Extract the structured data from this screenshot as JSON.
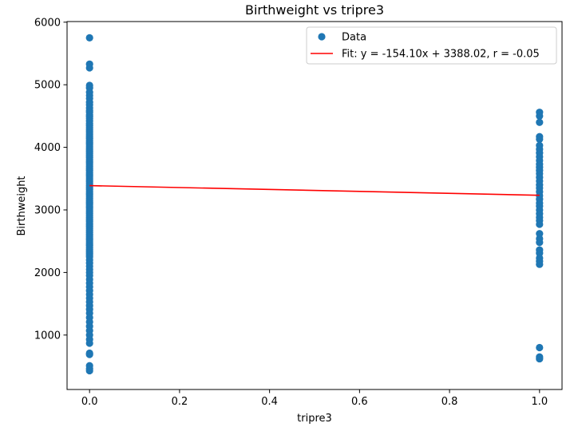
{
  "chart_data": {
    "type": "scatter",
    "title": "Birthweight vs tripre3",
    "xlabel": "tripre3",
    "ylabel": "Birthweight",
    "xlim": [
      -0.05,
      1.05
    ],
    "ylim": [
      130,
      6010
    ],
    "xticks": [
      0.0,
      0.2,
      0.4,
      0.6,
      0.8,
      1.0
    ],
    "xtick_labels": [
      "0.0",
      "0.2",
      "0.4",
      "0.6",
      "0.8",
      "1.0"
    ],
    "yticks": [
      1000,
      2000,
      3000,
      4000,
      5000,
      6000
    ],
    "ytick_labels": [
      "1000",
      "2000",
      "3000",
      "4000",
      "5000",
      "6000"
    ],
    "grid": false,
    "legend_position": "top-right",
    "colors": {
      "data": "#1f77b4",
      "fit": "#ff0000"
    },
    "series": [
      {
        "name": "Data",
        "type": "scatter",
        "points": [
          [
            0,
            5750
          ],
          [
            0,
            5330
          ],
          [
            0,
            5270
          ],
          [
            0,
            4990
          ],
          [
            0,
            4950
          ],
          [
            0,
            4880
          ],
          [
            0,
            4830
          ],
          [
            0,
            4780
          ],
          [
            0,
            4720
          ],
          [
            0,
            4680
          ],
          [
            0,
            4630
          ],
          [
            0,
            4590
          ],
          [
            0,
            4560
          ],
          [
            0,
            4520
          ],
          [
            0,
            4490
          ],
          [
            0,
            4460
          ],
          [
            0,
            4420
          ],
          [
            0,
            4380
          ],
          [
            0,
            4350
          ],
          [
            0,
            4320
          ],
          [
            0,
            4290
          ],
          [
            0,
            4260
          ],
          [
            0,
            4230
          ],
          [
            0,
            4200
          ],
          [
            0,
            4170
          ],
          [
            0,
            4140
          ],
          [
            0,
            4110
          ],
          [
            0,
            4080
          ],
          [
            0,
            4050
          ],
          [
            0,
            4020
          ],
          [
            0,
            3990
          ],
          [
            0,
            3960
          ],
          [
            0,
            3930
          ],
          [
            0,
            3900
          ],
          [
            0,
            3870
          ],
          [
            0,
            3840
          ],
          [
            0,
            3810
          ],
          [
            0,
            3780
          ],
          [
            0,
            3750
          ],
          [
            0,
            3720
          ],
          [
            0,
            3690
          ],
          [
            0,
            3660
          ],
          [
            0,
            3630
          ],
          [
            0,
            3600
          ],
          [
            0,
            3570
          ],
          [
            0,
            3540
          ],
          [
            0,
            3510
          ],
          [
            0,
            3480
          ],
          [
            0,
            3450
          ],
          [
            0,
            3420
          ],
          [
            0,
            3390
          ],
          [
            0,
            3360
          ],
          [
            0,
            3330
          ],
          [
            0,
            3300
          ],
          [
            0,
            3270
          ],
          [
            0,
            3240
          ],
          [
            0,
            3210
          ],
          [
            0,
            3180
          ],
          [
            0,
            3150
          ],
          [
            0,
            3120
          ],
          [
            0,
            3090
          ],
          [
            0,
            3060
          ],
          [
            0,
            3030
          ],
          [
            0,
            3000
          ],
          [
            0,
            2970
          ],
          [
            0,
            2940
          ],
          [
            0,
            2910
          ],
          [
            0,
            2880
          ],
          [
            0,
            2850
          ],
          [
            0,
            2820
          ],
          [
            0,
            2790
          ],
          [
            0,
            2760
          ],
          [
            0,
            2730
          ],
          [
            0,
            2700
          ],
          [
            0,
            2670
          ],
          [
            0,
            2640
          ],
          [
            0,
            2610
          ],
          [
            0,
            2580
          ],
          [
            0,
            2550
          ],
          [
            0,
            2520
          ],
          [
            0,
            2490
          ],
          [
            0,
            2460
          ],
          [
            0,
            2430
          ],
          [
            0,
            2400
          ],
          [
            0,
            2370
          ],
          [
            0,
            2340
          ],
          [
            0,
            2310
          ],
          [
            0,
            2280
          ],
          [
            0,
            2250
          ],
          [
            0,
            2200
          ],
          [
            0,
            2150
          ],
          [
            0,
            2100
          ],
          [
            0,
            2050
          ],
          [
            0,
            2000
          ],
          [
            0,
            1950
          ],
          [
            0,
            1890
          ],
          [
            0,
            1830
          ],
          [
            0,
            1770
          ],
          [
            0,
            1710
          ],
          [
            0,
            1650
          ],
          [
            0,
            1590
          ],
          [
            0,
            1530
          ],
          [
            0,
            1470
          ],
          [
            0,
            1410
          ],
          [
            0,
            1350
          ],
          [
            0,
            1280
          ],
          [
            0,
            1210
          ],
          [
            0,
            1140
          ],
          [
            0,
            1070
          ],
          [
            0,
            1000
          ],
          [
            0,
            930
          ],
          [
            0,
            870
          ],
          [
            0,
            710
          ],
          [
            0,
            690
          ],
          [
            0,
            510
          ],
          [
            0,
            460
          ],
          [
            0,
            430
          ],
          [
            1,
            4560
          ],
          [
            1,
            4500
          ],
          [
            1,
            4400
          ],
          [
            1,
            4170
          ],
          [
            1,
            4130
          ],
          [
            1,
            4030
          ],
          [
            1,
            3970
          ],
          [
            1,
            3910
          ],
          [
            1,
            3850
          ],
          [
            1,
            3790
          ],
          [
            1,
            3730
          ],
          [
            1,
            3680
          ],
          [
            1,
            3630
          ],
          [
            1,
            3580
          ],
          [
            1,
            3520
          ],
          [
            1,
            3460
          ],
          [
            1,
            3400
          ],
          [
            1,
            3350
          ],
          [
            1,
            3290
          ],
          [
            1,
            3230
          ],
          [
            1,
            3170
          ],
          [
            1,
            3110
          ],
          [
            1,
            3060
          ],
          [
            1,
            3000
          ],
          [
            1,
            2940
          ],
          [
            1,
            2880
          ],
          [
            1,
            2830
          ],
          [
            1,
            2770
          ],
          [
            1,
            2620
          ],
          [
            1,
            2540
          ],
          [
            1,
            2480
          ],
          [
            1,
            2360
          ],
          [
            1,
            2310
          ],
          [
            1,
            2230
          ],
          [
            1,
            2180
          ],
          [
            1,
            2130
          ],
          [
            1,
            800
          ],
          [
            1,
            650
          ],
          [
            1,
            620
          ]
        ]
      },
      {
        "name": "Fit: y = -154.10x + 3388.02, r = -0.05",
        "type": "line",
        "x": [
          0,
          1
        ],
        "y": [
          3388.02,
          3233.92
        ]
      }
    ]
  }
}
